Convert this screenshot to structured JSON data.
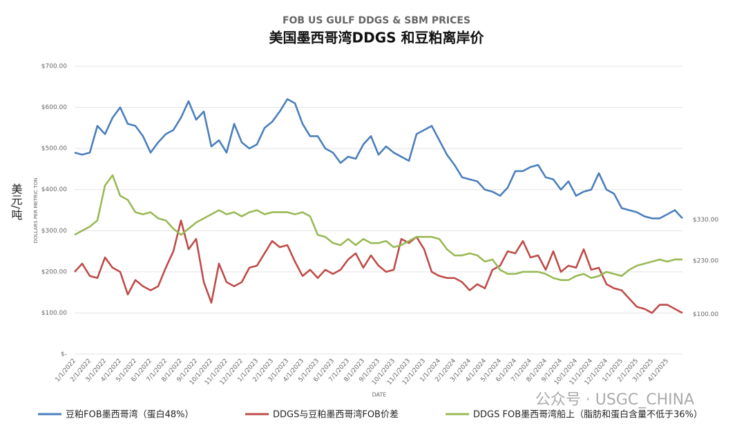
{
  "chart_data": {
    "type": "line",
    "title": "FOB US GULF DDGS & SBM PRICES",
    "subtitle": "美国墨西哥湾DDGS 和豆粕离岸价",
    "y_label": "DOLLARS PER METRIC TON",
    "y_label_cn": "美元/吨",
    "x_label": "DATE",
    "watermark": "公众号 · USGC_CHINA",
    "grid": true,
    "legend": "bottom",
    "ylim": [
      0,
      700
    ],
    "yticks": [
      {
        "value": 0,
        "label": "$-"
      },
      {
        "value": 100,
        "label": "$100.00"
      },
      {
        "value": 200,
        "label": "$200.00"
      },
      {
        "value": 300,
        "label": "$300.00"
      },
      {
        "value": 400,
        "label": "$400.00"
      },
      {
        "value": 500,
        "label": "$500.00"
      },
      {
        "value": 600,
        "label": "$600.00"
      },
      {
        "value": 700,
        "label": "$700.00"
      }
    ],
    "categories": [
      "1/1/2022",
      null,
      "2/1/2022",
      null,
      "3/1/2022",
      null,
      "4/1/2022",
      null,
      "5/1/2022",
      null,
      "6/1/2022",
      null,
      "7/1/2022",
      null,
      "8/1/2022",
      null,
      "9/1/2022",
      null,
      "10/1/2022",
      null,
      "11/1/2022",
      null,
      "12/1/2022",
      null,
      "1/1/2023",
      null,
      "2/1/2023",
      null,
      "3/1/2023",
      null,
      "4/1/2023",
      null,
      "5/1/2023",
      null,
      "6/1/2023",
      null,
      "7/1/2023",
      null,
      "8/1/2023",
      null,
      "9/1/2023",
      null,
      "10/1/2023",
      null,
      "11/1/2023",
      null,
      "12/1/2023",
      null,
      "1/1/2024",
      null,
      "2/1/2024",
      null,
      "3/1/2024",
      null,
      "4/1/2024",
      null,
      "5/1/2024",
      null,
      "6/1/2024",
      null,
      "7/1/2024",
      null,
      "8/1/2024",
      null,
      "9/1/2024",
      null,
      "10/1/2024",
      null,
      "11/1/2024",
      null,
      "12/1/2024",
      null,
      "1/1/2025",
      null,
      "2/1/2025",
      null,
      "3/1/2025",
      null,
      "4/1/2025",
      null,
      null
    ],
    "series": [
      {
        "name": "豆粕FOB墨西哥湾（蛋白48%）",
        "color": "#4a7ebb",
        "end_label": "$330.00",
        "values": [
          490,
          485,
          490,
          555,
          535,
          575,
          600,
          560,
          555,
          530,
          490,
          515,
          535,
          545,
          575,
          615,
          570,
          590,
          505,
          520,
          490,
          560,
          515,
          500,
          510,
          550,
          565,
          590,
          620,
          610,
          560,
          530,
          530,
          500,
          490,
          465,
          480,
          475,
          510,
          530,
          485,
          505,
          490,
          480,
          470,
          535,
          545,
          555,
          520,
          485,
          460,
          430,
          425,
          420,
          400,
          395,
          385,
          405,
          445,
          445,
          455,
          460,
          430,
          425,
          400,
          420,
          385,
          395,
          400,
          440,
          400,
          390,
          355,
          350,
          345,
          335,
          330,
          330,
          340,
          350,
          330
        ]
      },
      {
        "name": "DDGS与豆粕墨西哥湾FOB价差",
        "color": "#be4b48",
        "end_label": "$100.00",
        "values": [
          200,
          220,
          190,
          185,
          235,
          210,
          200,
          145,
          180,
          165,
          155,
          165,
          210,
          250,
          325,
          255,
          280,
          175,
          125,
          220,
          175,
          165,
          175,
          210,
          215,
          245,
          275,
          260,
          265,
          225,
          190,
          205,
          185,
          205,
          195,
          205,
          230,
          245,
          210,
          240,
          215,
          200,
          205,
          280,
          270,
          285,
          255,
          200,
          190,
          185,
          185,
          175,
          155,
          170,
          160,
          205,
          215,
          250,
          245,
          275,
          235,
          240,
          205,
          250,
          200,
          215,
          210,
          255,
          205,
          210,
          170,
          160,
          155,
          135,
          115,
          110,
          100,
          120,
          120,
          110,
          100
        ]
      },
      {
        "name": "DDGS FOB墨西哥湾船上（脂肪和蛋白含量不低于36%）",
        "color": "#98b954",
        "end_label": "$230.00",
        "values": [
          290,
          300,
          310,
          325,
          410,
          435,
          385,
          375,
          345,
          340,
          345,
          330,
          325,
          305,
          290,
          305,
          320,
          330,
          340,
          350,
          340,
          345,
          335,
          345,
          350,
          340,
          345,
          345,
          345,
          340,
          345,
          335,
          290,
          285,
          270,
          265,
          280,
          265,
          280,
          270,
          270,
          275,
          260,
          265,
          275,
          285,
          285,
          285,
          280,
          255,
          240,
          240,
          245,
          240,
          225,
          230,
          205,
          195,
          195,
          200,
          200,
          200,
          195,
          185,
          180,
          180,
          190,
          195,
          185,
          190,
          200,
          195,
          190,
          205,
          215,
          220,
          225,
          230,
          225,
          230,
          230
        ]
      }
    ]
  }
}
